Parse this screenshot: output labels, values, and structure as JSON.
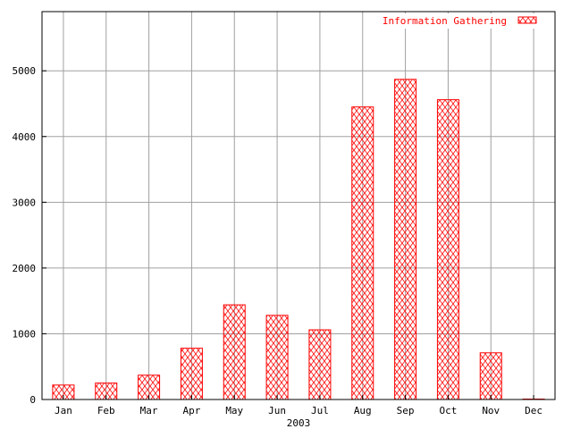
{
  "chart_data": {
    "type": "bar",
    "title": "",
    "xlabel": "2003",
    "ylabel": "",
    "categories": [
      "Jan",
      "Feb",
      "Mar",
      "Apr",
      "May",
      "Jun",
      "Jul",
      "Aug",
      "Sep",
      "Oct",
      "Nov",
      "Dec"
    ],
    "series": [
      {
        "name": "Information Gathering",
        "color": "#ff0000",
        "fill": "crosshatch",
        "values": [
          220,
          250,
          370,
          780,
          1440,
          1280,
          1060,
          4450,
          4870,
          4560,
          710,
          0
        ]
      }
    ],
    "ylim": [
      0,
      5900
    ],
    "yticks": [
      0,
      1000,
      2000,
      3000,
      4000,
      5000
    ],
    "grid": true,
    "legend_position": "top-right"
  }
}
